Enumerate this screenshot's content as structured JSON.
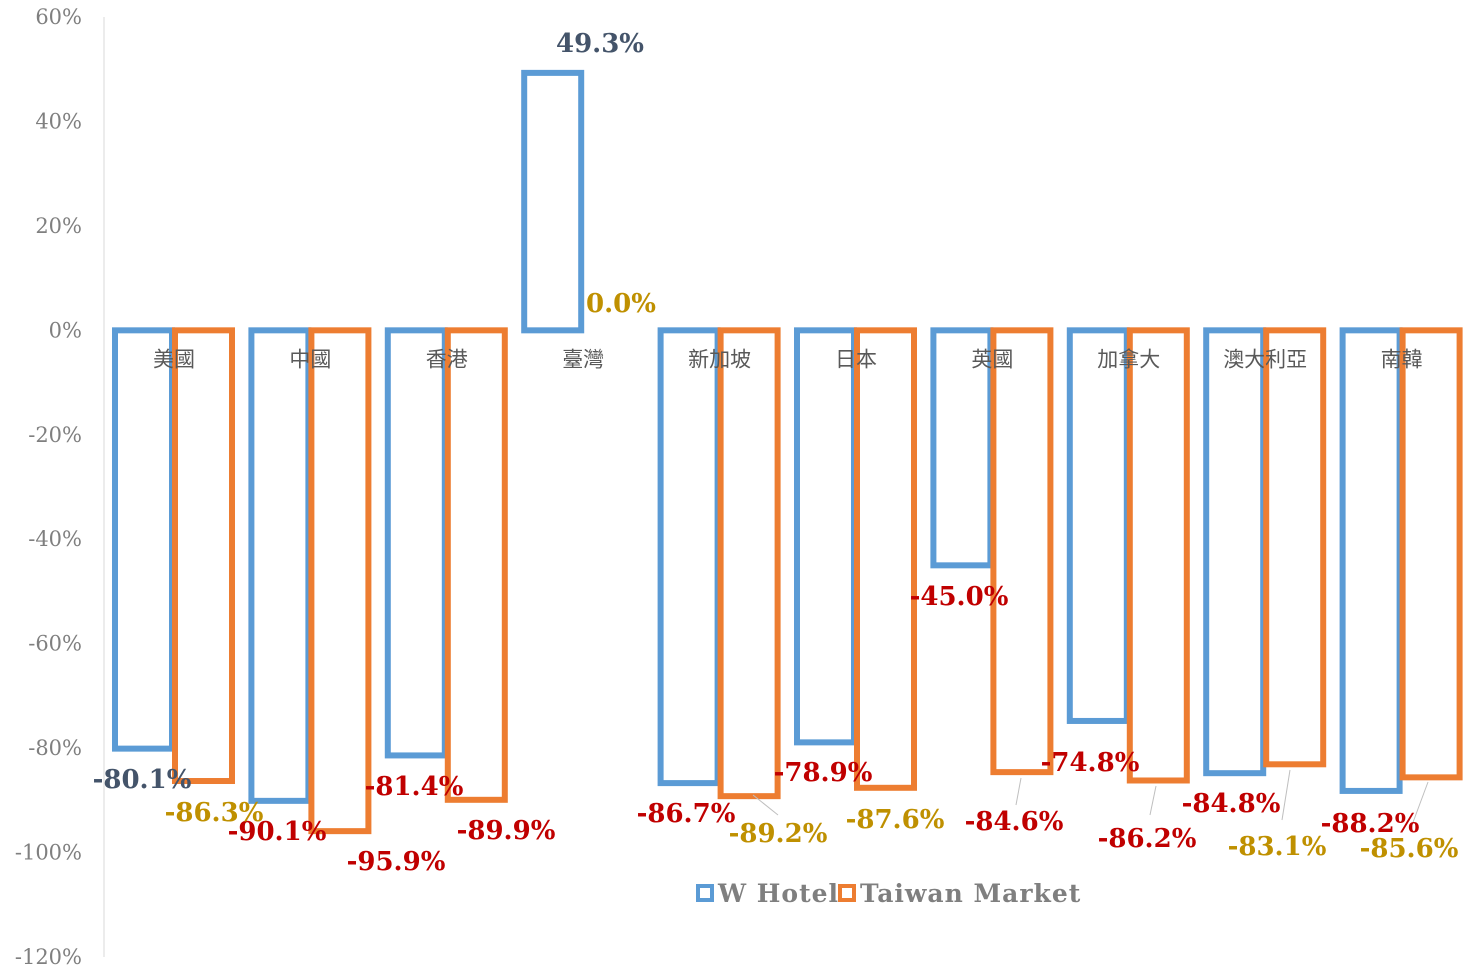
{
  "chart_data": {
    "type": "bar",
    "title": "",
    "xlabel": "",
    "ylabel": "",
    "ylim": [
      -120,
      60
    ],
    "yticks": [
      60,
      40,
      20,
      0,
      -20,
      -40,
      -60,
      -80,
      -100,
      -120
    ],
    "ytick_labels": [
      "60%",
      "40%",
      "20%",
      "0%",
      "-20%",
      "-40%",
      "-60%",
      "-80%",
      "-100%",
      "-120%"
    ],
    "grid": false,
    "legend_position": "bottom",
    "categories": [
      "美國",
      "中國",
      "香港",
      "臺灣",
      "新加坡",
      "日本",
      "英國",
      "加拿大",
      "澳大利亞",
      "南韓"
    ],
    "series": [
      {
        "name": "W Hotel",
        "color": "#5b9bd5",
        "values": [
          -80.1,
          -90.1,
          -81.4,
          49.3,
          -86.7,
          -78.9,
          -45.0,
          -74.8,
          -84.8,
          -88.2
        ],
        "labels": [
          "-80.1%",
          "-90.1%",
          "-81.4%",
          "49.3%",
          "-86.7%",
          "-78.9%",
          "-45.0%",
          "-74.8%",
          "-84.8%",
          "-88.2%"
        ],
        "label_colors": [
          "#44546a",
          "#c00000",
          "#c00000",
          "#44546a",
          "#c00000",
          "#c00000",
          "#c00000",
          "#c00000",
          "#c00000",
          "#c00000"
        ]
      },
      {
        "name": "Taiwan Market",
        "color": "#ed7d31",
        "values": [
          -86.3,
          -95.9,
          -89.9,
          0.0,
          -89.2,
          -87.6,
          -84.6,
          -86.2,
          -83.1,
          -85.6
        ],
        "labels": [
          "-86.3%",
          "-95.9%",
          "-89.9%",
          "0.0%",
          "-89.2%",
          "-87.6%",
          "-84.6%",
          "-86.2%",
          "-83.1%",
          "-85.6%"
        ],
        "label_colors": [
          "#bf9000",
          "#c00000",
          "#c00000",
          "#bf9000",
          "#bf9000",
          "#bf9000",
          "#c00000",
          "#c00000",
          "#bf9000",
          "#bf9000"
        ]
      }
    ]
  }
}
